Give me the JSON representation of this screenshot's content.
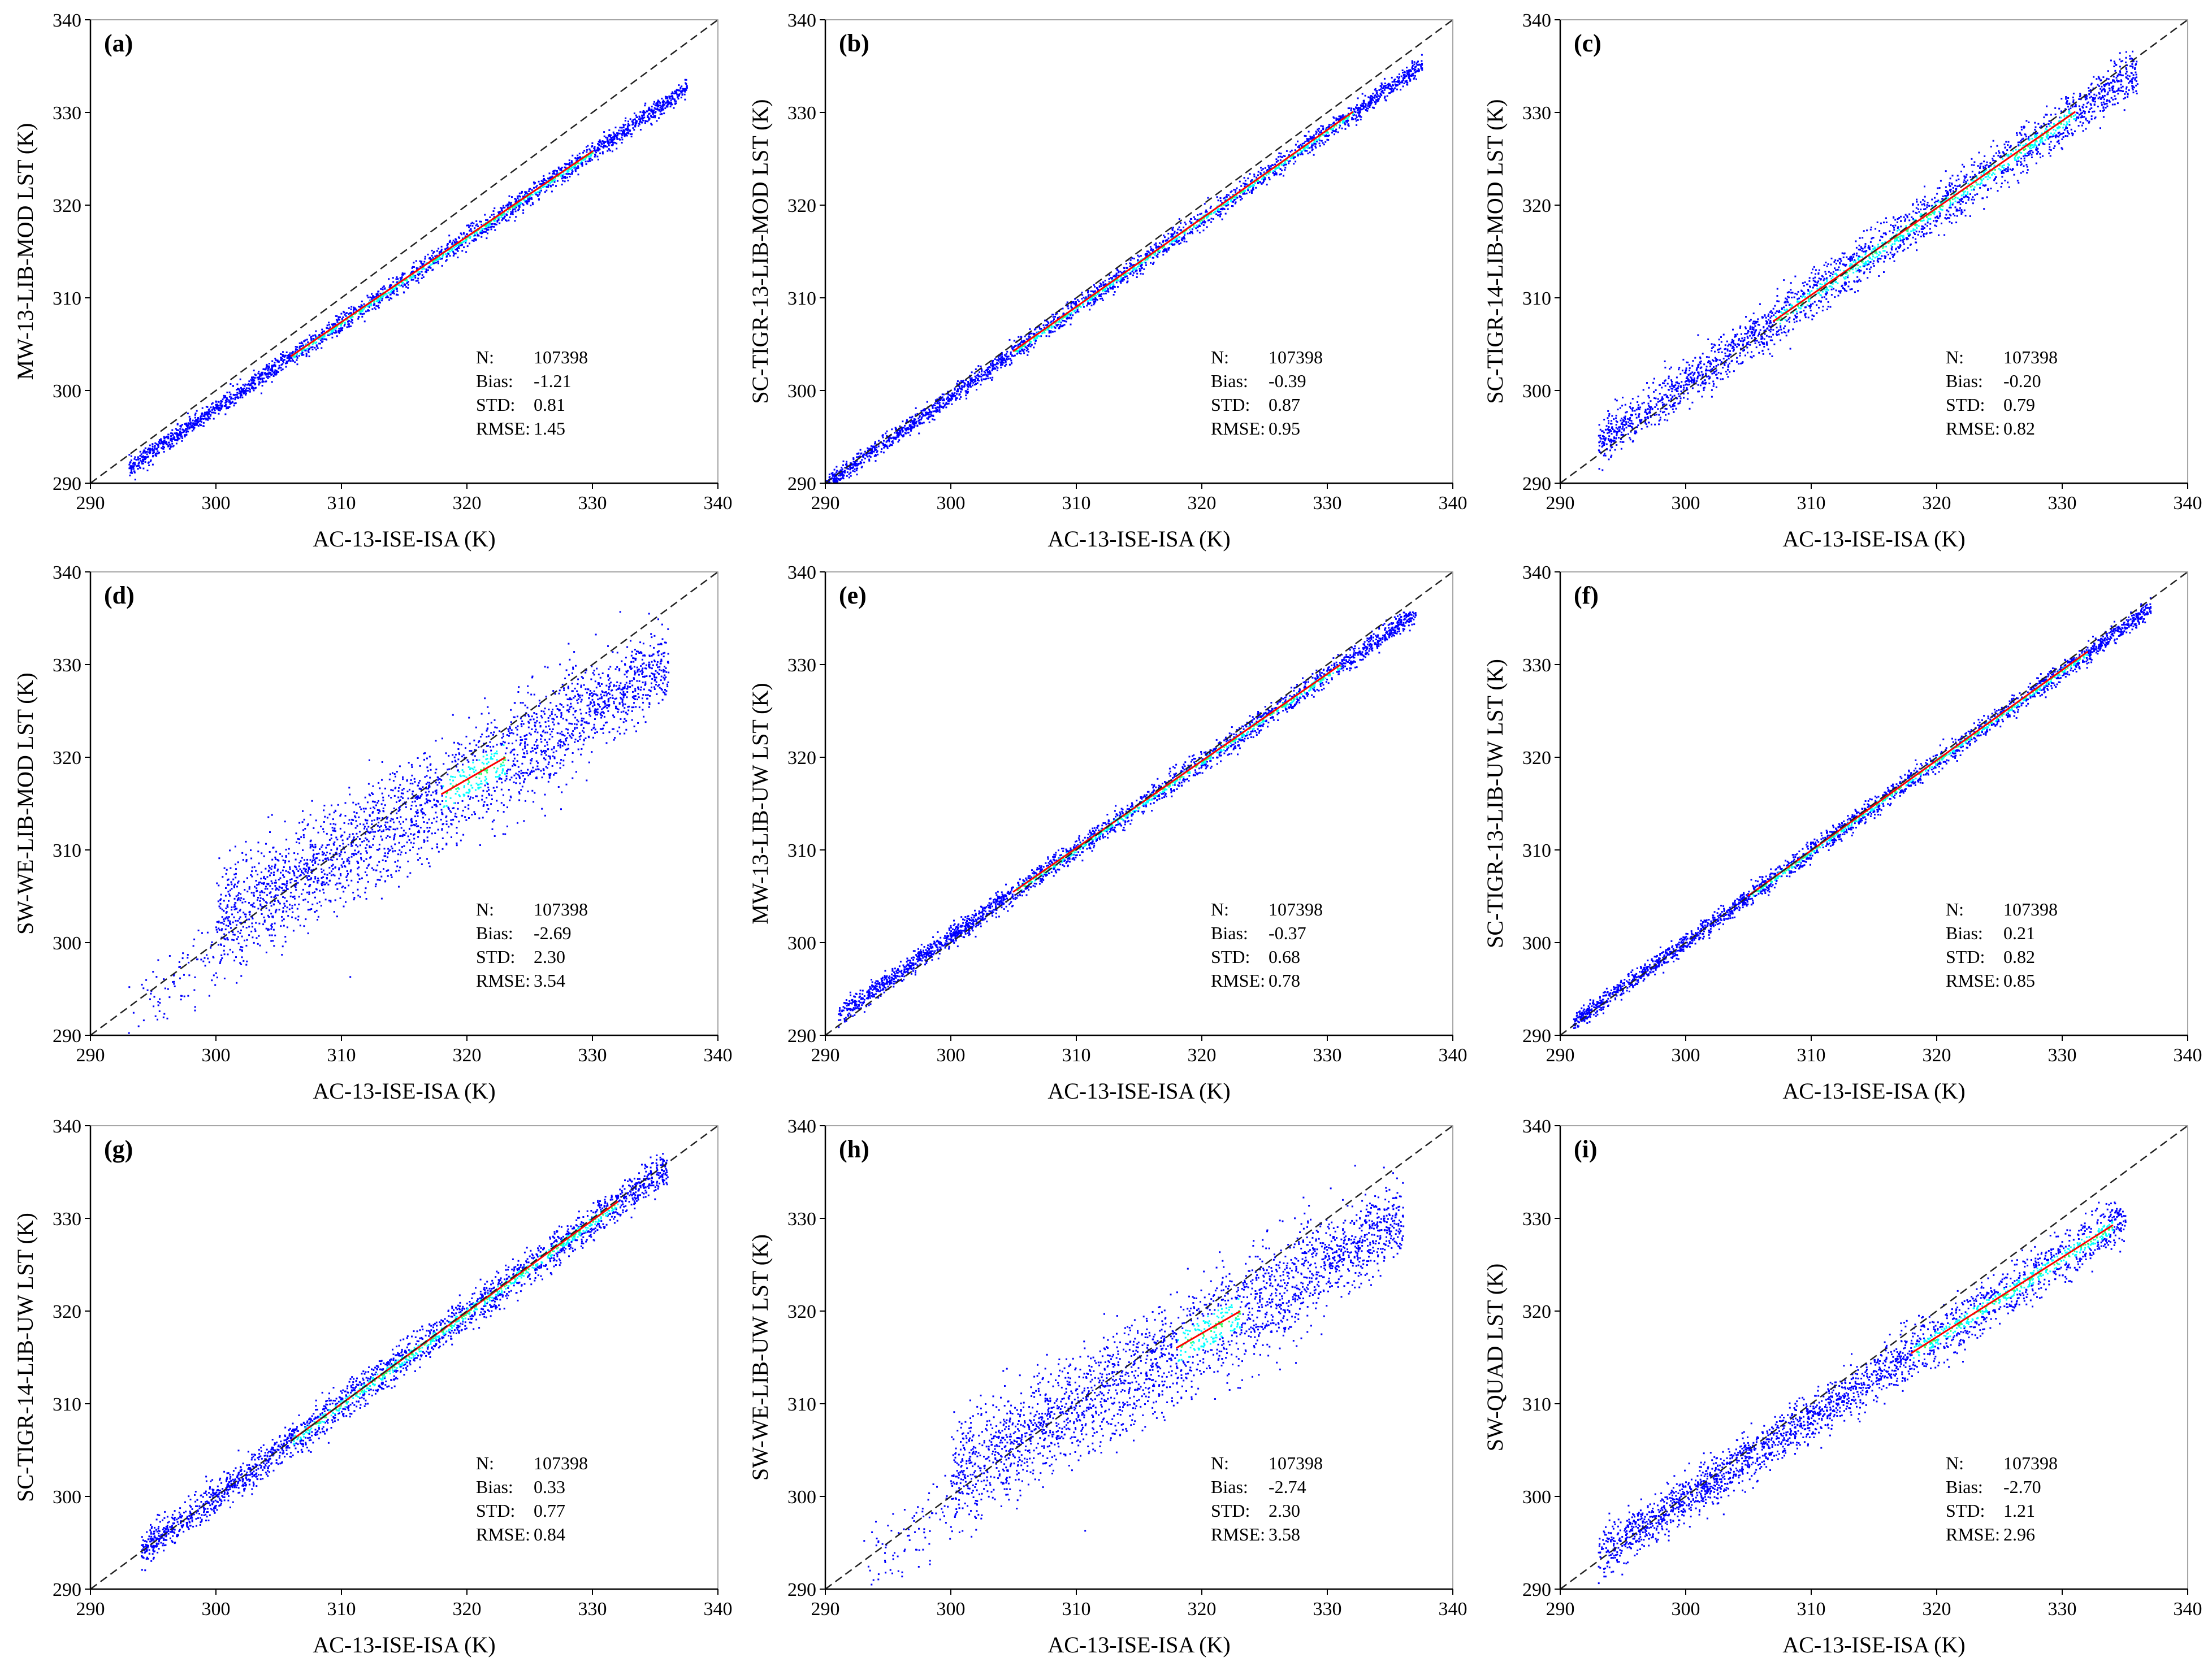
{
  "figure": {
    "colors": {
      "axis": "#000000",
      "one_to_one_line": "#222222",
      "density_low": "#0000ff",
      "density_mid": "#00ffff",
      "density_high": "#ff0000"
    },
    "stats_labels": {
      "n": "N:",
      "bias": "Bias:",
      "std": "STD:",
      "rmse": "RMSE:"
    }
  },
  "chart_data": [
    {
      "type": "scatter",
      "panel": "(a)",
      "xlabel": "AC-13-ISE-ISA (K)",
      "ylabel": "MW-13-LIB-MOD LST (K)",
      "xlim": [
        290,
        340
      ],
      "ylim": [
        290,
        340
      ],
      "xticks": [
        "290",
        "300",
        "310",
        "320",
        "330",
        "340"
      ],
      "yticks": [
        "290",
        "300",
        "310",
        "320",
        "330",
        "340"
      ],
      "stats": {
        "n": "107398",
        "bias": "-1.21",
        "std": "0.81",
        "rmse": "1.45"
      },
      "cloud": {
        "x_range": [
          293,
          337.5
        ],
        "slope": 0.92,
        "intercept": 22.2,
        "spread": 0.5,
        "spread_upper_x": 0,
        "hot_x": [
          306,
          330
        ],
        "tail_x": []
      }
    },
    {
      "type": "scatter",
      "panel": "(b)",
      "xlabel": "AC-13-ISE-ISA (K)",
      "ylabel": "SC-TIGR-13-LIB-MOD LST (K)",
      "xlim": [
        290,
        340
      ],
      "ylim": [
        290,
        340
      ],
      "xticks": [
        "290",
        "300",
        "310",
        "320",
        "330",
        "340"
      ],
      "yticks": [
        "290",
        "300",
        "310",
        "320",
        "330",
        "340"
      ],
      "stats": {
        "n": "107398",
        "bias": "-0.39",
        "std": "0.87",
        "rmse": "0.95"
      },
      "cloud": {
        "x_range": [
          290,
          337.5
        ],
        "slope": 0.954,
        "intercept": 13.3,
        "spread": 0.5,
        "spread_upper_x": 0,
        "hot_x": [
          305,
          332
        ],
        "tail_x": []
      }
    },
    {
      "type": "scatter",
      "panel": "(c)",
      "xlabel": "AC-13-ISE-ISA (K)",
      "ylabel": "SC-TIGR-14-LIB-MOD LST (K)",
      "xlim": [
        290,
        340
      ],
      "ylim": [
        290,
        340
      ],
      "xticks": [
        "290",
        "300",
        "310",
        "320",
        "330",
        "340"
      ],
      "yticks": [
        "290",
        "300",
        "310",
        "320",
        "330",
        "340"
      ],
      "stats": {
        "n": "107398",
        "bias": "-0.20",
        "std": "0.79",
        "rmse": "0.82"
      },
      "cloud": {
        "x_range": [
          293,
          336
        ],
        "slope": 0.94,
        "intercept": 18.9,
        "spread": 1.2,
        "spread_upper_x": 0,
        "hot_x": [
          307,
          331
        ],
        "tail_x": []
      }
    },
    {
      "type": "scatter",
      "panel": "(d)",
      "xlabel": "AC-13-ISE-ISA (K)",
      "ylabel": "SW-WE-LIB-MOD LST (K)",
      "xlim": [
        290,
        340
      ],
      "ylim": [
        290,
        340
      ],
      "xticks": [
        "290",
        "300",
        "310",
        "320",
        "330",
        "340"
      ],
      "yticks": [
        "290",
        "300",
        "310",
        "320",
        "330",
        "340"
      ],
      "stats": {
        "n": "107398",
        "bias": "-2.69",
        "std": "2.30",
        "rmse": "3.54"
      },
      "cloud": {
        "x_range": [
          300,
          336
        ],
        "slope": 0.78,
        "intercept": 68,
        "spread": 2.9,
        "spread_upper_x": 330,
        "hot_x": [
          318,
          323
        ],
        "tail_x": [
          293,
          300
        ]
      }
    },
    {
      "type": "scatter",
      "panel": "(e)",
      "xlabel": "AC-13-ISE-ISA (K)",
      "ylabel": "MW-13-LIB-UW LST (K)",
      "xlim": [
        290,
        340
      ],
      "ylim": [
        290,
        340
      ],
      "xticks": [
        "290",
        "300",
        "310",
        "320",
        "330",
        "340"
      ],
      "yticks": [
        "290",
        "300",
        "310",
        "320",
        "330",
        "340"
      ],
      "stats": {
        "n": "107398",
        "bias": "-0.37",
        "std": "0.68",
        "rmse": "0.78"
      },
      "cloud": {
        "x_range": [
          291,
          337
        ],
        "slope": 0.94,
        "intercept": 18.8,
        "spread": 0.55,
        "spread_upper_x": 0,
        "hot_x": [
          305,
          331
        ],
        "tail_x": []
      }
    },
    {
      "type": "scatter",
      "panel": "(f)",
      "xlabel": "AC-13-ISE-ISA (K)",
      "ylabel": "SC-TIGR-13-LIB-UW LST (K)",
      "xlim": [
        290,
        340
      ],
      "ylim": [
        290,
        340
      ],
      "xticks": [
        "290",
        "300",
        "310",
        "320",
        "330",
        "340"
      ],
      "yticks": [
        "290",
        "300",
        "310",
        "320",
        "330",
        "340"
      ],
      "stats": {
        "n": "107398",
        "bias": "0.21",
        "std": "0.82",
        "rmse": "0.85"
      },
      "cloud": {
        "x_range": [
          291,
          337
        ],
        "slope": 0.974,
        "intercept": 8.0,
        "spread": 0.5,
        "spread_upper_x": 0,
        "hot_x": [
          305,
          332
        ],
        "tail_x": []
      }
    },
    {
      "type": "scatter",
      "panel": "(g)",
      "xlabel": "AC-13-ISE-ISA (K)",
      "ylabel": "SC-TIGR-14-LIB-UW LST (K)",
      "xlim": [
        290,
        340
      ],
      "ylim": [
        290,
        340
      ],
      "xticks": [
        "290",
        "300",
        "310",
        "320",
        "330",
        "340"
      ],
      "yticks": [
        "290",
        "300",
        "310",
        "320",
        "330",
        "340"
      ],
      "stats": {
        "n": "107398",
        "bias": "0.33",
        "std": "0.77",
        "rmse": "0.84"
      },
      "cloud": {
        "x_range": [
          294,
          336
        ],
        "slope": 0.99,
        "intercept": 3.1,
        "spread": 0.9,
        "spread_upper_x": 0,
        "hot_x": [
          306,
          332
        ],
        "tail_x": []
      }
    },
    {
      "type": "scatter",
      "panel": "(h)",
      "xlabel": "AC-13-ISE-ISA (K)",
      "ylabel": "SW-WE-LIB-UW LST (K)",
      "xlim": [
        290,
        340
      ],
      "ylim": [
        290,
        340
      ],
      "xticks": [
        "290",
        "300",
        "310",
        "320",
        "330",
        "340"
      ],
      "yticks": [
        "290",
        "300",
        "310",
        "320",
        "330",
        "340"
      ],
      "stats": {
        "n": "107398",
        "bias": "-2.74",
        "std": "2.30",
        "rmse": "3.58"
      },
      "cloud": {
        "x_range": [
          300,
          336
        ],
        "slope": 0.78,
        "intercept": 68,
        "spread": 2.9,
        "spread_upper_x": 330,
        "hot_x": [
          318,
          323
        ],
        "tail_x": [
          293,
          300
        ]
      }
    },
    {
      "type": "scatter",
      "panel": "(i)",
      "xlabel": "AC-13-ISE-ISA (K)",
      "ylabel": "SW-QUAD LST (K)",
      "xlim": [
        290,
        340
      ],
      "ylim": [
        290,
        340
      ],
      "xticks": [
        "290",
        "300",
        "310",
        "320",
        "330",
        "340"
      ],
      "yticks": [
        "290",
        "300",
        "310",
        "320",
        "330",
        "340"
      ],
      "stats": {
        "n": "107398",
        "bias": "-2.70",
        "std": "1.21",
        "rmse": "2.96"
      },
      "cloud": {
        "x_range": [
          293,
          335
        ],
        "slope": 0.86,
        "intercept": 42,
        "spread": 1.3,
        "spread_upper_x": 0,
        "hot_x": [
          318,
          334
        ],
        "tail_x": []
      }
    }
  ]
}
